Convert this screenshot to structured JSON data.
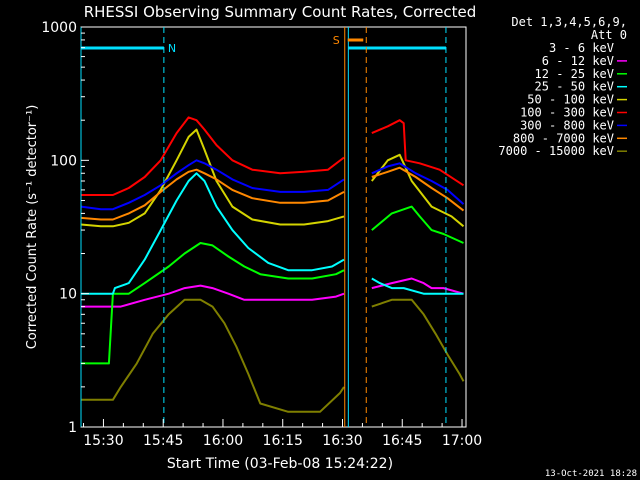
{
  "chart_data": {
    "type": "line",
    "title": "RHESSI Observing Summary Count Rates, Corrected",
    "xlabel": "Start Time (03-Feb-08 15:24:22)",
    "ylabel": "Corrected Count Rate (s⁻¹ detector⁻¹)",
    "yscale": "log",
    "ylim": [
      1,
      1000
    ],
    "xlim": [
      "15:24:22",
      "17:01:00"
    ],
    "x_ticks": [
      "15:30",
      "15:45",
      "16:00",
      "16:15",
      "16:30",
      "16:45",
      "17:00"
    ],
    "y_ticks": [
      "1",
      "10",
      "100",
      "1000"
    ],
    "legend_header": [
      "Det 1,3,4,5,6,9,",
      "Att 0"
    ],
    "legend_position": "right",
    "timestamp": "13-Oct-2021 18:28",
    "series": [
      {
        "name": "3 - 6 keV",
        "color": "#000000",
        "values": []
      },
      {
        "name": "6 - 12 keV",
        "color": "#ff00ff",
        "values": [
          [
            0,
            8
          ],
          [
            10,
            8
          ],
          [
            16,
            9
          ],
          [
            22,
            10
          ],
          [
            26,
            11
          ],
          [
            30,
            11.5
          ],
          [
            33,
            11
          ],
          [
            37,
            10
          ],
          [
            41,
            9
          ],
          [
            45,
            9
          ],
          [
            52,
            9
          ],
          [
            58,
            9
          ],
          [
            64,
            9.5
          ],
          [
            66,
            10
          ],
          [
            66.2,
            null
          ],
          [
            73,
            11
          ],
          [
            78,
            12
          ],
          [
            83,
            13
          ],
          [
            86,
            12
          ],
          [
            88,
            11
          ],
          [
            91,
            11
          ],
          [
            96,
            10
          ]
        ]
      },
      {
        "name": "12 - 25 keV",
        "color": "#00ff00",
        "values": [
          [
            0,
            3
          ],
          [
            5,
            3
          ],
          [
            7,
            3
          ],
          [
            8,
            10
          ],
          [
            12,
            10
          ],
          [
            16,
            12
          ],
          [
            22,
            16
          ],
          [
            26,
            20
          ],
          [
            30,
            24
          ],
          [
            33,
            23
          ],
          [
            37,
            19
          ],
          [
            41,
            16
          ],
          [
            45,
            14
          ],
          [
            52,
            13
          ],
          [
            58,
            13
          ],
          [
            64,
            14
          ],
          [
            66,
            15
          ],
          [
            66.2,
            null
          ],
          [
            73,
            30
          ],
          [
            78,
            40
          ],
          [
            83,
            45
          ],
          [
            85,
            38
          ],
          [
            88,
            30
          ],
          [
            91,
            28
          ],
          [
            96,
            24
          ]
        ]
      },
      {
        "name": "25 - 50 keV",
        "color": "#00ffff",
        "values": [
          [
            0,
            10
          ],
          [
            5,
            10
          ],
          [
            8,
            10
          ],
          [
            8.5,
            11
          ],
          [
            12,
            12
          ],
          [
            16,
            18
          ],
          [
            20,
            30
          ],
          [
            24,
            50
          ],
          [
            27,
            70
          ],
          [
            29,
            80
          ],
          [
            31,
            70
          ],
          [
            34,
            45
          ],
          [
            38,
            30
          ],
          [
            42,
            22
          ],
          [
            47,
            17
          ],
          [
            52,
            15
          ],
          [
            58,
            15
          ],
          [
            63,
            16
          ],
          [
            66,
            18
          ],
          [
            66.2,
            null
          ],
          [
            73,
            13
          ],
          [
            75,
            12
          ],
          [
            78,
            11
          ],
          [
            81,
            11
          ],
          [
            86,
            10
          ],
          [
            91,
            10
          ],
          [
            96,
            10
          ]
        ]
      },
      {
        "name": "50 - 100 keV",
        "color": "#d4d400",
        "values": [
          [
            0,
            33
          ],
          [
            5,
            32
          ],
          [
            8,
            32
          ],
          [
            12,
            34
          ],
          [
            16,
            40
          ],
          [
            20,
            60
          ],
          [
            24,
            100
          ],
          [
            27,
            150
          ],
          [
            29,
            170
          ],
          [
            31,
            120
          ],
          [
            34,
            70
          ],
          [
            38,
            45
          ],
          [
            43,
            36
          ],
          [
            50,
            33
          ],
          [
            56,
            33
          ],
          [
            62,
            35
          ],
          [
            66,
            38
          ],
          [
            66.2,
            null
          ],
          [
            73,
            70
          ],
          [
            77,
            100
          ],
          [
            80,
            110
          ],
          [
            83,
            70
          ],
          [
            88,
            45
          ],
          [
            93,
            38
          ],
          [
            96,
            32
          ]
        ]
      },
      {
        "name": "100 - 300 keV",
        "color": "#ff0000",
        "values": [
          [
            0,
            55
          ],
          [
            5,
            55
          ],
          [
            8,
            55
          ],
          [
            12,
            62
          ],
          [
            16,
            75
          ],
          [
            20,
            100
          ],
          [
            24,
            160
          ],
          [
            27,
            210
          ],
          [
            29,
            200
          ],
          [
            31,
            170
          ],
          [
            34,
            130
          ],
          [
            38,
            100
          ],
          [
            43,
            85
          ],
          [
            50,
            80
          ],
          [
            56,
            82
          ],
          [
            62,
            85
          ],
          [
            66,
            105
          ],
          [
            66.2,
            null
          ],
          [
            73,
            160
          ],
          [
            77,
            180
          ],
          [
            80,
            200
          ],
          [
            81,
            190
          ],
          [
            81.5,
            100
          ],
          [
            85,
            95
          ],
          [
            90,
            85
          ],
          [
            96,
            65
          ]
        ]
      },
      {
        "name": "300 - 800 keV",
        "color": "#0000ff",
        "values": [
          [
            0,
            45
          ],
          [
            5,
            43
          ],
          [
            8,
            43
          ],
          [
            12,
            48
          ],
          [
            16,
            55
          ],
          [
            20,
            65
          ],
          [
            24,
            80
          ],
          [
            27,
            92
          ],
          [
            29,
            100
          ],
          [
            31,
            95
          ],
          [
            34,
            85
          ],
          [
            38,
            72
          ],
          [
            43,
            62
          ],
          [
            50,
            58
          ],
          [
            56,
            58
          ],
          [
            62,
            60
          ],
          [
            66,
            72
          ],
          [
            66.2,
            null
          ],
          [
            73,
            80
          ],
          [
            77,
            90
          ],
          [
            80,
            95
          ],
          [
            84,
            80
          ],
          [
            88,
            70
          ],
          [
            92,
            60
          ],
          [
            96,
            47
          ]
        ]
      },
      {
        "name": "800 - 7000 keV",
        "color": "#ff8800",
        "values": [
          [
            0,
            37
          ],
          [
            5,
            36
          ],
          [
            8,
            36
          ],
          [
            12,
            40
          ],
          [
            16,
            46
          ],
          [
            20,
            58
          ],
          [
            24,
            72
          ],
          [
            27,
            82
          ],
          [
            29,
            85
          ],
          [
            31,
            80
          ],
          [
            34,
            72
          ],
          [
            38,
            60
          ],
          [
            43,
            52
          ],
          [
            50,
            48
          ],
          [
            56,
            48
          ],
          [
            62,
            50
          ],
          [
            66,
            58
          ],
          [
            66.2,
            null
          ],
          [
            73,
            75
          ],
          [
            77,
            82
          ],
          [
            80,
            88
          ],
          [
            84,
            75
          ],
          [
            88,
            62
          ],
          [
            92,
            52
          ],
          [
            96,
            42
          ]
        ]
      },
      {
        "name": "7000 - 15000 keV",
        "color": "#7f7f00",
        "values": [
          [
            0,
            1.6
          ],
          [
            5,
            1.6
          ],
          [
            8,
            1.6
          ],
          [
            10,
            2
          ],
          [
            14,
            3
          ],
          [
            18,
            5
          ],
          [
            22,
            7
          ],
          [
            26,
            9
          ],
          [
            30,
            9
          ],
          [
            33,
            8
          ],
          [
            36,
            6
          ],
          [
            39,
            4
          ],
          [
            42,
            2.5
          ],
          [
            45,
            1.5
          ],
          [
            52,
            1.3
          ],
          [
            60,
            1.3
          ],
          [
            65,
            1.8
          ],
          [
            66,
            2
          ],
          [
            66.2,
            null
          ],
          [
            73,
            8
          ],
          [
            78,
            9
          ],
          [
            83,
            9
          ],
          [
            86,
            7
          ],
          [
            89,
            5
          ],
          [
            92,
            3.5
          ],
          [
            95,
            2.5
          ],
          [
            96,
            2.2
          ]
        ]
      }
    ],
    "markers": {
      "night_periods": [
        [
          0,
          20.8
        ],
        [
          67.1,
          91.6
        ]
      ],
      "saa_periods": [
        [
          66.2,
          71.6
        ]
      ],
      "attenuator_label": "N",
      "saa_label": "S"
    }
  }
}
